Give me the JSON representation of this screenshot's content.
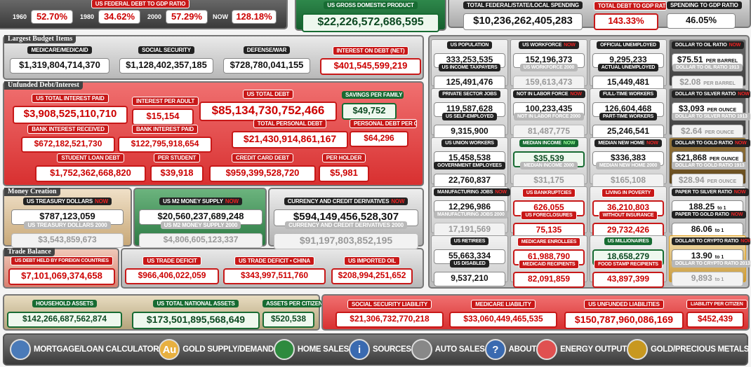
{
  "top": {
    "debt_to_gdp": {
      "title": "US FEDERAL DEBT TO GDP RATIO",
      "points": [
        {
          "label": "1960",
          "value": "52.70%"
        },
        {
          "label": "1980",
          "value": "34.62%"
        },
        {
          "label": "2000",
          "value": "57.29%"
        },
        {
          "label": "NOW",
          "value": "128.18%"
        }
      ]
    },
    "items": [
      {
        "label": "US GROSS DOMESTIC PRODUCT",
        "value": "$22,226,572,686,595",
        "style": "green"
      },
      {
        "label": "TOTAL FEDERAL/STATE/LOCAL SPENDING",
        "value": "$10,236,262,405,283",
        "style": "dark"
      },
      {
        "label": "TOTAL DEBT TO GDP RATIO",
        "value": "143.33%",
        "style": "red"
      },
      {
        "label": "SPENDING TO GDP RATIO",
        "value": "46.05%",
        "style": "dark"
      }
    ]
  },
  "sections": [
    {
      "title": "Largest Budget Items",
      "items": [
        {
          "label": "MEDICARE/MEDICAID",
          "value": "$1,319,804,714,370",
          "style": "dark"
        },
        {
          "label": "SOCIAL SECURITY",
          "value": "$1,128,402,357,185",
          "style": "dark"
        },
        {
          "label": "DEFENSE/WAR",
          "value": "$728,780,041,155",
          "style": "dark"
        },
        {
          "label": "INTEREST ON DEBT (NET)",
          "value": "$401,545,599,219",
          "style": "red"
        }
      ]
    },
    {
      "title": "Unfunded Debt/Interest",
      "items": [
        {
          "label": "US TOTAL INTEREST PAID",
          "value": "$3,908,525,110,710",
          "style": "red"
        },
        {
          "label": "INTEREST PER ADULT",
          "value": "$15,154",
          "style": "red"
        },
        {
          "label": "US TOTAL DEBT",
          "value": "$85,134,730,752,466",
          "style": "red"
        },
        {
          "label": "SAVINGS PER FAMILY",
          "value": "$49,752",
          "style": "green"
        },
        {
          "label": "BANK INTEREST RECEIVED",
          "value": "$672,182,521,730",
          "style": "red"
        },
        {
          "label": "BANK INTEREST PAID",
          "value": "$122,795,918,654",
          "style": "red"
        },
        {
          "label": "TOTAL PERSONAL DEBT",
          "value": "$21,430,914,861,167",
          "style": "red"
        },
        {
          "label": "PERSONAL DEBT PER CIT.",
          "value": "$64,296",
          "style": "red"
        },
        {
          "label": "STUDENT LOAN DEBT",
          "value": "$1,752,362,668,820",
          "style": "red"
        },
        {
          "label": "PER STUDENT",
          "value": "$39,918",
          "style": "red"
        },
        {
          "label": "CREDIT CARD DEBT",
          "value": "$959,399,528,720",
          "style": "red"
        },
        {
          "label": "PER HOLDER",
          "value": "$5,981",
          "style": "red"
        }
      ]
    },
    {
      "title": "Money Creation",
      "items": [
        {
          "label": "US TREASURY DOLLARS",
          "tag": "NOW",
          "value": "$787,123,059",
          "style": "dark"
        },
        {
          "label": "US TREASURY DOLLARS 2000",
          "value": "$3,543,859,673",
          "style": "gray"
        },
        {
          "label": "US M2 MONEY SUPPLY",
          "tag": "NOW",
          "value": "$20,560,237,689,248",
          "style": "dark"
        },
        {
          "label": "US M2 MONEY SUPPLY 2000",
          "value": "$4,806,605,123,337",
          "style": "gray"
        },
        {
          "label": "CURRENCY AND CREDIT DERIVATIVES",
          "tag": "NOW",
          "value": "$594,149,456,528,307",
          "style": "dark"
        },
        {
          "label": "CURRENCY AND CREDIT DERIVATIVES 2000",
          "value": "$91,197,803,852,195",
          "style": "gray"
        }
      ]
    },
    {
      "title": "Trade Balance",
      "items": [
        {
          "label": "US DEBT HELD BY FOREIGN COUNTRIES",
          "value": "$7,101,069,374,658",
          "style": "red"
        },
        {
          "label": "US TRADE DEFICIT",
          "value": "$966,406,022,059",
          "style": "red"
        },
        {
          "label": "US TRADE DEFICIT • CHINA",
          "value": "$343,997,511,760",
          "style": "red"
        },
        {
          "label": "US IMPORTED OIL",
          "value": "$208,994,251,652",
          "style": "red"
        }
      ]
    }
  ],
  "grid": {
    "cells": [
      {
        "items": [
          {
            "label": "US POPULATION",
            "value": "333,253,535",
            "style": "dark"
          },
          {
            "label": "US INCOME TAXPAYERS",
            "value": "125,491,476",
            "style": "dark"
          }
        ]
      },
      {
        "items": [
          {
            "label": "US WORKFORCE",
            "tag": "NOW",
            "value": "152,196,373",
            "style": "dark"
          },
          {
            "label": "US WORKFORCE 2000",
            "value": "159,613,473",
            "style": "gray"
          }
        ]
      },
      {
        "items": [
          {
            "label": "OFFICIAL UNEMPLOYED",
            "value": "9,295,233",
            "style": "dark"
          },
          {
            "label": "ACTUAL UNEMPLOYED",
            "value": "15,449,481",
            "style": "dark"
          }
        ]
      },
      {
        "items": [
          {
            "label": "DOLLAR TO OIL RATIO",
            "tag": "NOW",
            "value": "$75.51",
            "unit": "PER BARREL",
            "style": "dark"
          },
          {
            "label": "DOLLAR TO OIL RATIO 1913",
            "value": "$2.08",
            "unit": "PER BARREL",
            "style": "gray"
          }
        ]
      },
      {
        "items": [
          {
            "label": "PRIVATE SECTOR JOBS",
            "value": "119,587,628",
            "style": "dark"
          },
          {
            "label": "US SELF-EMPLOYED",
            "value": "9,315,900",
            "style": "dark"
          }
        ]
      },
      {
        "items": [
          {
            "label": "NOT IN LABOR FORCE",
            "tag": "NOW",
            "value": "100,233,435",
            "style": "dark"
          },
          {
            "label": "NOT IN LABOR FORCE 2000",
            "value": "81,487,775",
            "style": "gray"
          }
        ]
      },
      {
        "items": [
          {
            "label": "FULL-TIME WORKERS",
            "value": "126,604,468",
            "style": "dark"
          },
          {
            "label": "PART-TIME WORKERS",
            "value": "25,246,541",
            "style": "dark"
          }
        ]
      },
      {
        "items": [
          {
            "label": "DOLLAR TO SILVER RATIO",
            "tag": "NOW",
            "value": "$3,093",
            "unit": "PER OUNCE",
            "style": "dark"
          },
          {
            "label": "DOLLAR TO SILVER RATIO 1913",
            "value": "$2.64",
            "unit": "PER OUNCE",
            "style": "gray"
          }
        ]
      },
      {
        "items": [
          {
            "label": "US UNION WORKERS",
            "value": "15,458,538",
            "style": "dark"
          },
          {
            "label": "GOVERNMENT EMPLOYEES",
            "value": "22,760,837",
            "style": "dark"
          }
        ]
      },
      {
        "items": [
          {
            "label": "MEDIAN INCOME",
            "tag": "NOW",
            "value": "$35,539",
            "style": "green"
          },
          {
            "label": "MEDIAN INCOME 2000",
            "value": "$31,175",
            "style": "gray"
          }
        ]
      },
      {
        "items": [
          {
            "label": "MEDIAN NEW HOME",
            "tag": "NOW",
            "value": "$336,383",
            "style": "dark"
          },
          {
            "label": "MEDIAN NEW HOME 2000",
            "value": "$165,108",
            "style": "gray"
          }
        ]
      },
      {
        "items": [
          {
            "label": "DOLLAR TO GOLD RATIO",
            "tag": "NOW",
            "value": "$21,868",
            "unit": "PER OUNCE",
            "style": "dark"
          },
          {
            "label": "DOLLAR TO GOLD RATIO 1913",
            "value": "$28.94",
            "unit": "PER OUNCE",
            "style": "gray"
          }
        ]
      },
      {
        "items": [
          {
            "label": "MANUFACTURING JOBS",
            "tag": "NOW",
            "value": "12,296,986",
            "style": "dark"
          },
          {
            "label": "MANUFACTURING JOBS 2000",
            "value": "17,191,569",
            "style": "gray"
          }
        ]
      },
      {
        "items": [
          {
            "label": "US BANKRUPTCIES",
            "value": "626,055",
            "style": "red"
          },
          {
            "label": "US FORECLOSURES",
            "value": "75,135",
            "style": "red"
          }
        ]
      },
      {
        "items": [
          {
            "label": "LIVING IN POVERTY",
            "value": "36,210,803",
            "style": "red"
          },
          {
            "label": "WITHOUT INSURANCE",
            "value": "29,732,426",
            "style": "red"
          }
        ]
      },
      {
        "items": [
          {
            "label": "PAPER TO SILVER RATIO",
            "tag": "NOW",
            "value": "188.25",
            "unit": "to 1",
            "style": "dark"
          },
          {
            "label": "PAPER TO GOLD RATIO",
            "tag": "NOW",
            "value": "86.06",
            "unit": "to 1",
            "style": "dark"
          }
        ]
      },
      {
        "items": [
          {
            "label": "US RETIREES",
            "value": "55,663,334",
            "style": "dark"
          },
          {
            "label": "US DISABLED",
            "value": "9,537,210",
            "style": "dark"
          }
        ]
      },
      {
        "items": [
          {
            "label": "MEDICARE ENROLLEES",
            "value": "61,988,790",
            "style": "red"
          },
          {
            "label": "MEDICAID RECIPIENTS",
            "value": "82,091,859",
            "style": "red"
          }
        ]
      },
      {
        "items": [
          {
            "label": "US MILLIONAIRES",
            "value": "18,658,279",
            "style": "green"
          },
          {
            "label": "FOOD STAMP RECIPIENTS",
            "value": "43,897,399",
            "style": "red"
          }
        ]
      },
      {
        "items": [
          {
            "label": "DOLLAR TO CRYPTO RATIO",
            "tag": "NOW",
            "value": "13.90",
            "unit": "to 1",
            "style": "dark"
          },
          {
            "label": "DOLLAR TO CRYPTO RATIO 2013",
            "value": "9,893",
            "unit": "to 1",
            "style": "gray"
          }
        ]
      }
    ]
  },
  "bottom": {
    "items": [
      {
        "label": "HOUSEHOLD ASSETS",
        "value": "$142,266,687,562,874",
        "style": "green"
      },
      {
        "label": "US TOTAL NATIONAL ASSETS",
        "value": "$173,501,895,568,649",
        "style": "green"
      },
      {
        "label": "ASSETS PER CITIZEN",
        "value": "$520,538",
        "style": "green"
      },
      {
        "label": "SOCIAL SECURITY LIABILITY",
        "value": "$21,306,732,770,218",
        "style": "red"
      },
      {
        "label": "MEDICARE LIABILITY",
        "value": "$33,060,449,465,535",
        "style": "red"
      },
      {
        "label": "US UNFUNDED LIABILITIES",
        "value": "$150,787,960,086,169",
        "style": "red"
      },
      {
        "label": "LIABILITY PER CITIZEN",
        "value": "$452,439",
        "style": "red"
      }
    ]
  },
  "nav": [
    {
      "label": "MORTGAGE/LOAN CALCULATOR"
    },
    {
      "label": "GOLD SUPPLY/DEMAND",
      "icon": "Au"
    },
    {
      "label": "HOME SALES"
    },
    {
      "label": "SOURCES",
      "icon": "i"
    },
    {
      "label": "AUTO SALES"
    },
    {
      "label": "ABOUT",
      "icon": "?"
    },
    {
      "label": "ENERGY OUTPUT"
    },
    {
      "label": "GOLD/PRECIOUS METALS"
    }
  ]
}
